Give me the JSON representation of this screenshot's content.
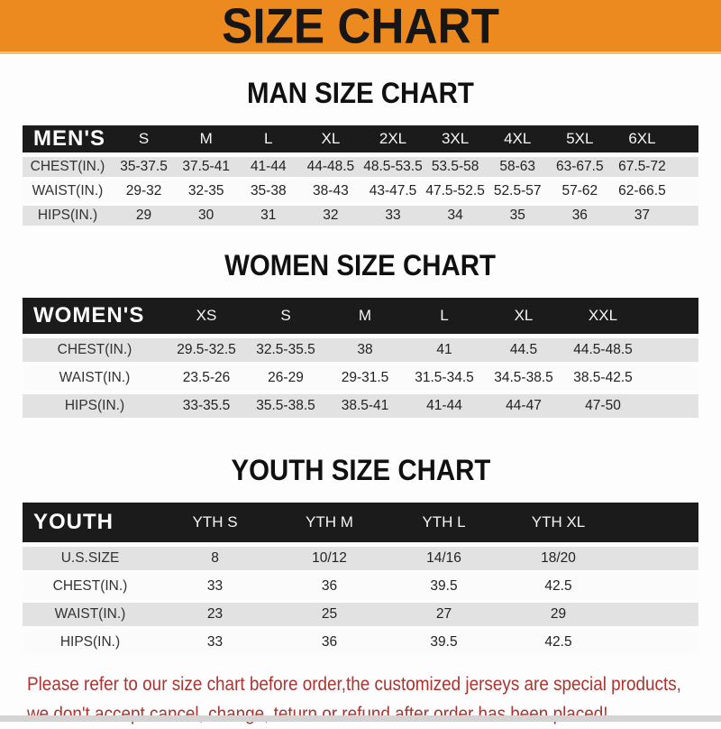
{
  "banner": {
    "title": "SIZE CHART"
  },
  "theme": {
    "banner-bg": "#ec8a20",
    "bar-bg": "#1b1b1b",
    "row-gray": "#e2e2e2",
    "row-white": "#fbfbfb",
    "note-red": "#a93531"
  },
  "sections": [
    {
      "heading": "MAN SIZE CHART",
      "corner": "MEN'S",
      "columns": [
        "S",
        "M",
        "L",
        "XL",
        "2XL",
        "3XL",
        "4XL",
        "5XL",
        "6XL"
      ],
      "rows": [
        {
          "label": "CHEST(IN.)",
          "values": [
            "35-37.5",
            "37.5-41",
            "41-44",
            "44-48.5",
            "48.5-53.5",
            "53.5-58",
            "58-63",
            "63-67.5",
            "67.5-72"
          ]
        },
        {
          "label": "WAIST(IN.)",
          "values": [
            "29-32",
            "32-35",
            "35-38",
            "38-43",
            "43-47.5",
            "47.5-52.5",
            "52.5-57",
            "57-62",
            "62-66.5"
          ]
        },
        {
          "label": "HIPS(IN.)",
          "values": [
            "29",
            "30",
            "31",
            "32",
            "33",
            "34",
            "35",
            "36",
            "37"
          ]
        }
      ]
    },
    {
      "heading": "WOMEN SIZE CHART",
      "corner": "WOMEN'S",
      "columns": [
        "XS",
        "S",
        "M",
        "L",
        "XL",
        "XXL"
      ],
      "rows": [
        {
          "label": "CHEST(IN.)",
          "values": [
            "29.5-32.5",
            "32.5-35.5",
            "38",
            "41",
            "44.5",
            "44.5-48.5"
          ]
        },
        {
          "label": "WAIST(IN.)",
          "values": [
            "23.5-26",
            "26-29",
            "29-31.5",
            "31.5-34.5",
            "34.5-38.5",
            "38.5-42.5"
          ]
        },
        {
          "label": "HIPS(IN.)",
          "values": [
            "33-35.5",
            "35.5-38.5",
            "38.5-41",
            "41-44",
            "44-47",
            "47-50"
          ]
        }
      ]
    },
    {
      "heading": "YOUTH SIZE CHART",
      "corner": "YOUTH",
      "columns": [
        "YTH S",
        "YTH M",
        "YTH L",
        "YTH XL"
      ],
      "rows": [
        {
          "label": "U.S.SIZE",
          "values": [
            "8",
            "10/12",
            "14/16",
            "18/20"
          ]
        },
        {
          "label": "CHEST(IN.)",
          "values": [
            "33",
            "36",
            "39.5",
            "42.5"
          ]
        },
        {
          "label": "WAIST(IN.)",
          "values": [
            "23",
            "25",
            "27",
            "29"
          ]
        },
        {
          "label": "HIPS(IN.)",
          "values": [
            "33",
            "36",
            "39.5",
            "42.5"
          ]
        }
      ]
    }
  ],
  "note": {
    "line1": "Please refer to our size chart before order,the customized jerseys are special products,",
    "line2": "we don't accept cancel, change, teturn or refund after order has been placed!"
  }
}
